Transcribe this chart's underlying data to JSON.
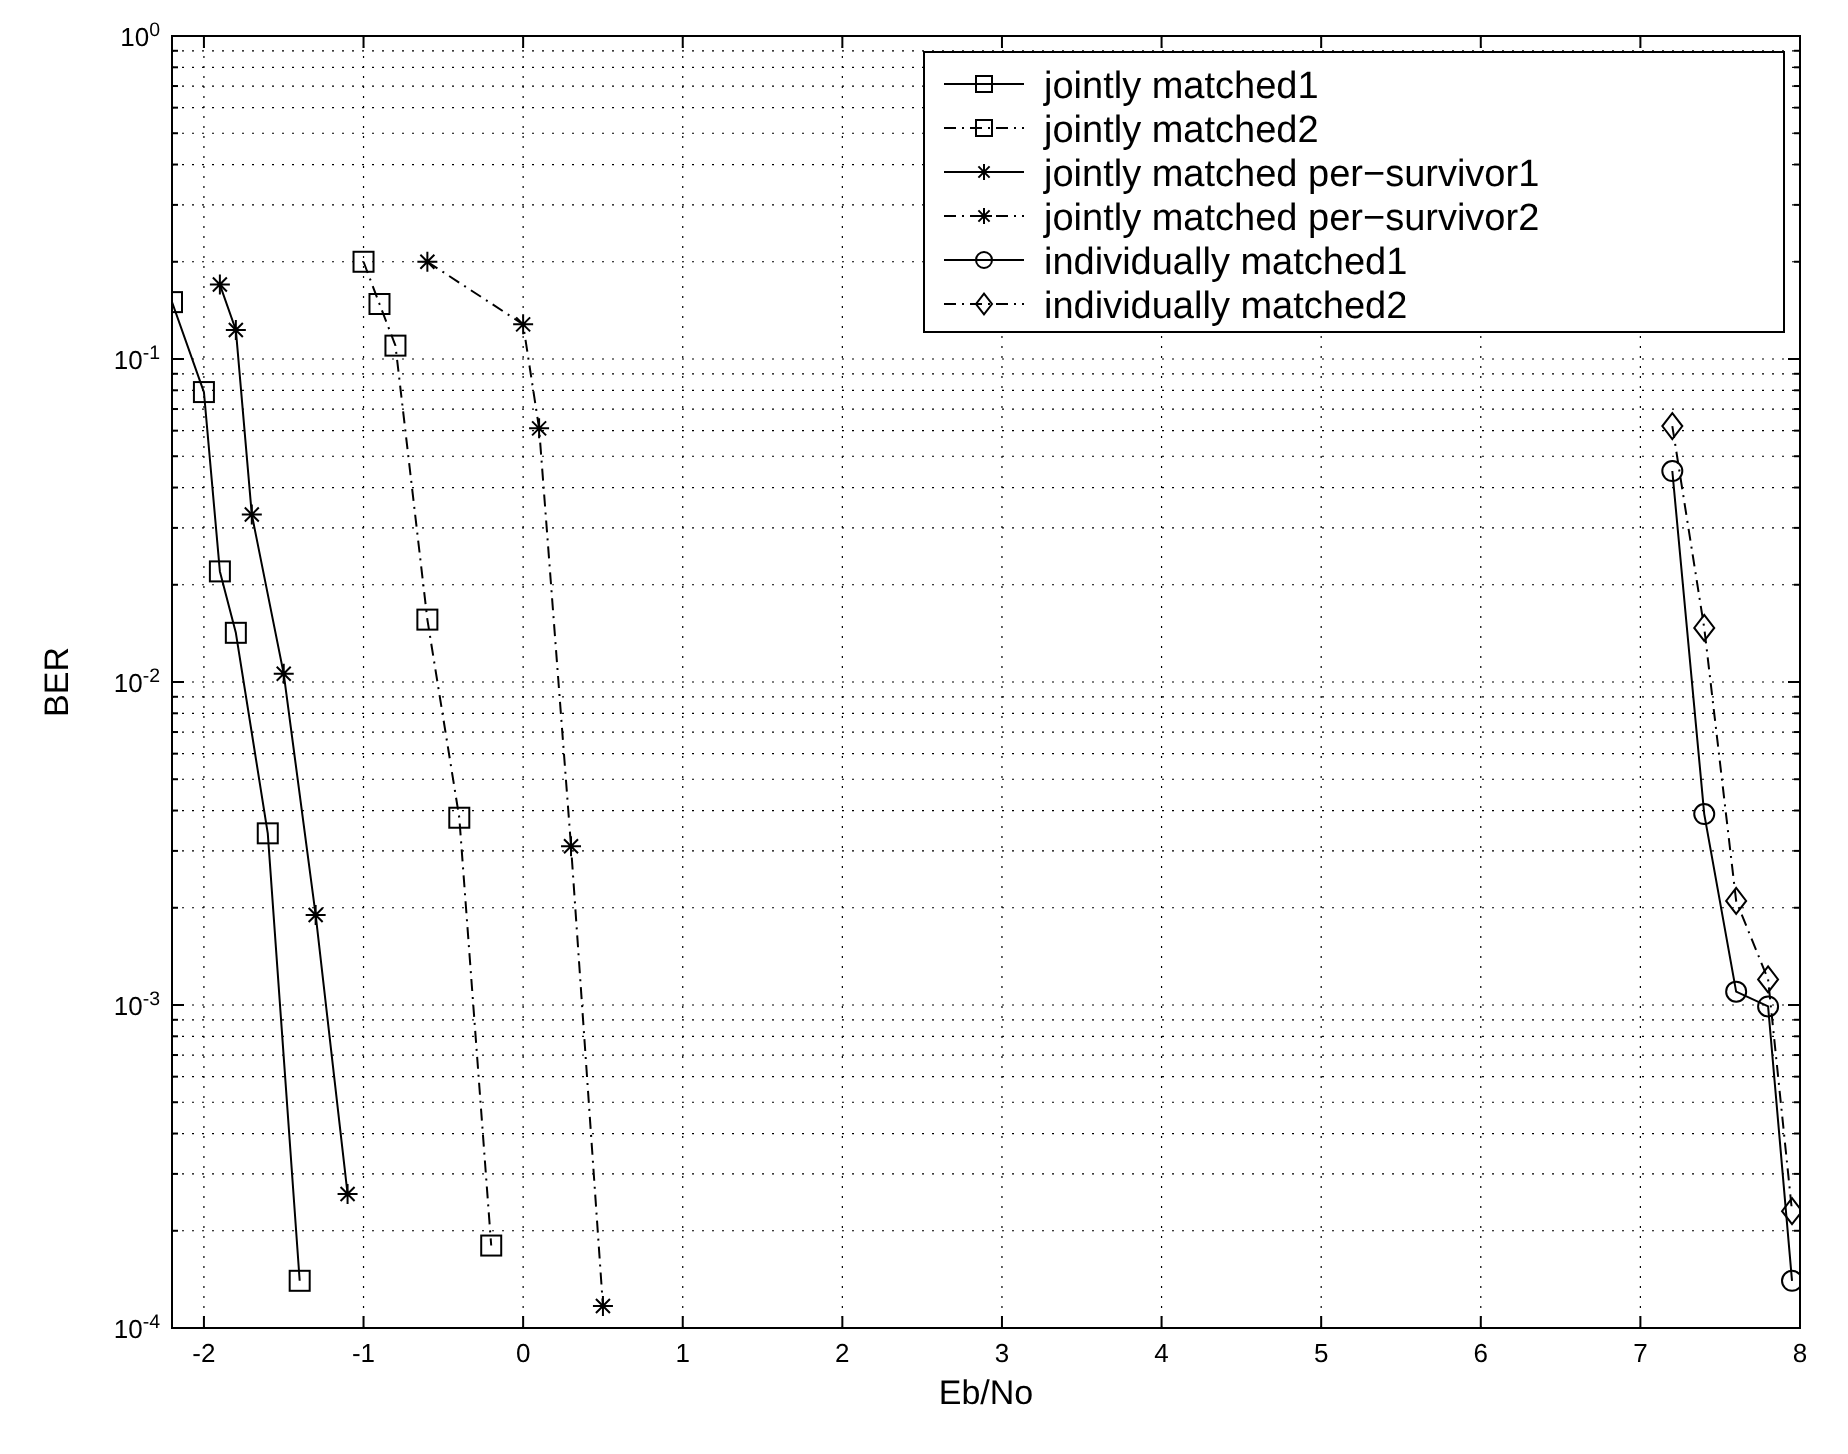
{
  "chart_data": {
    "type": "line",
    "xlabel": "Eb/No",
    "ylabel": "BER",
    "log": "y",
    "grid": true,
    "legend": "top right",
    "xlim": [
      -2.2,
      8
    ],
    "xticks": [
      -2,
      -1,
      0,
      1,
      2,
      3,
      4,
      5,
      6,
      7,
      8
    ],
    "ylim": [
      0.0001,
      1
    ],
    "yticks": [
      {
        "value": 0.0001,
        "label": "10$^{-4}$"
      },
      {
        "value": 0.001,
        "label": "10$^{-3}$"
      },
      {
        "value": 0.01,
        "label": "10$^{-2}$"
      },
      {
        "value": 0.1,
        "label": "10$^{-1}$"
      },
      {
        "value": 1,
        "label": "10$^{0}$"
      }
    ],
    "series": [
      {
        "name": "jointly matched1",
        "color": "#000000",
        "marker": "square",
        "line_style": "solid",
        "x": [
          -2.2,
          -2,
          -1.9,
          -1.8,
          -1.6,
          -1.4
        ],
        "values": [
          0.15,
          0.079,
          0.022,
          0.0142,
          0.0034,
          0.00014
        ]
      },
      {
        "name": "jointly matched2",
        "color": "#000000",
        "marker": "square",
        "line_style": "dashed",
        "x": [
          -1,
          -0.9,
          -0.8,
          -0.6,
          -0.4,
          -0.2
        ],
        "values": [
          0.2,
          0.148,
          0.11,
          0.0156,
          0.0038,
          0.00018
        ]
      },
      {
        "name": "jointly matched per−survivor1",
        "color": "#000000",
        "marker": "cross",
        "line_style": "solid",
        "x": [
          -1.9,
          -1.8,
          -1.7,
          -1.5,
          -1.3,
          -1.1
        ],
        "values": [
          0.17,
          0.123,
          0.033,
          0.0106,
          0.0019,
          0.00026
        ]
      },
      {
        "name": "jointly matched per−survivor2",
        "color": "#000000",
        "marker": "cross",
        "line_style": "dashed",
        "x": [
          -0.6,
          0,
          0.1,
          0.3,
          0.5
        ],
        "values": [
          0.2,
          0.128,
          0.061,
          0.0031,
          0.000117
        ]
      },
      {
        "name": "individually matched1",
        "color": "#000000",
        "marker": "circle",
        "line_style": "solid",
        "x": [
          7.2,
          7.4,
          7.6,
          7.8,
          7.95
        ],
        "values": [
          0.045,
          0.0039,
          0.0011,
          0.00099,
          0.00014
        ]
      },
      {
        "name": "individually matched2",
        "color": "#000000",
        "marker": "diamond",
        "line_style": "dashed",
        "x": [
          7.2,
          7.4,
          7.6,
          7.8,
          7.95
        ],
        "values": [
          0.062,
          0.0147,
          0.0021,
          0.0012,
          0.00023
        ]
      }
    ]
  }
}
